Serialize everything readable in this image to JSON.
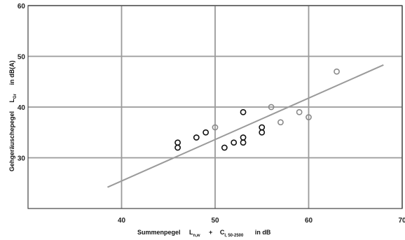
{
  "chart_data": {
    "type": "scatter",
    "xlabel": {
      "prefix": "Summenpegel",
      "term1": "L",
      "term1_sub": "n,w",
      "plus": "+",
      "term2": "C",
      "term2_sub": "I, 50-2500",
      "unit": "in dB"
    },
    "ylabel": {
      "prefix": "Gehgeräuschepegel",
      "term": "L",
      "term_sub": "Gr",
      "unit": "in dB(A)"
    },
    "xlim": [
      30,
      70
    ],
    "ylim": [
      20,
      60
    ],
    "xticks": [
      "40",
      "50",
      "60",
      "70"
    ],
    "yticks": [
      "30",
      "40",
      "50",
      "60"
    ],
    "grid": true,
    "series": [
      {
        "style": "dark-circles",
        "color": "#111111",
        "points": [
          [
            46,
            33
          ],
          [
            46,
            32
          ],
          [
            48,
            34
          ],
          [
            49,
            35
          ],
          [
            51,
            32
          ],
          [
            52,
            33
          ],
          [
            53,
            33
          ],
          [
            53,
            34
          ],
          [
            53,
            39
          ],
          [
            55,
            35
          ],
          [
            55,
            36
          ]
        ]
      },
      {
        "style": "light-circles",
        "color": "#8a8a8a",
        "points": [
          [
            50,
            36
          ],
          [
            56,
            40
          ],
          [
            57,
            37
          ],
          [
            59,
            39
          ],
          [
            60,
            38
          ],
          [
            63,
            47
          ]
        ]
      }
    ],
    "trendline": {
      "color": "#9a9a9a",
      "x": [
        38.5,
        68
      ],
      "y": [
        24.2,
        48.3
      ]
    }
  }
}
